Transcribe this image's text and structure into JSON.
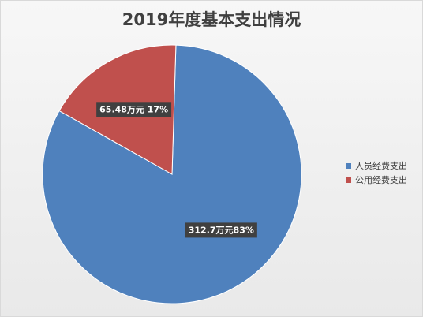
{
  "chart_data": {
    "type": "pie",
    "title": "2019年度基本支出情况",
    "slices": [
      {
        "label": "人员经费支出",
        "value": 312.7,
        "percent": 83,
        "data_label": "312.7万元83%",
        "color": "#4f81bd"
      },
      {
        "label": "公用经费支出",
        "value": 65.48,
        "percent": 17,
        "data_label": "65.48万元 17%",
        "color": "#c0504d"
      }
    ],
    "legend_position": "right"
  }
}
